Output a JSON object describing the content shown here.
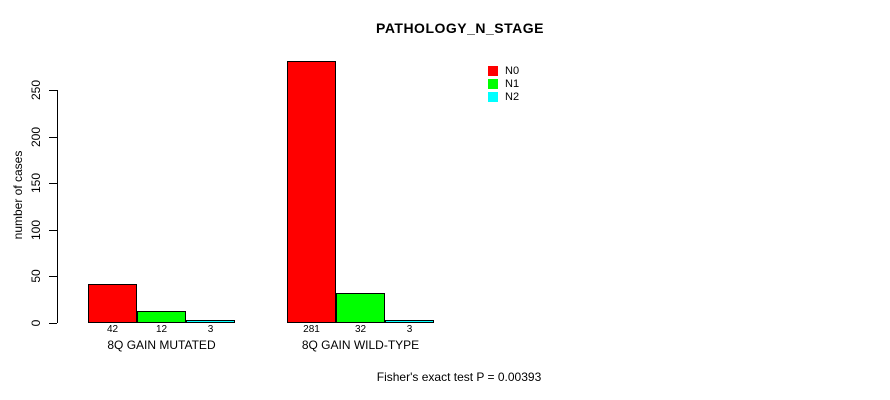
{
  "chart_data": {
    "type": "bar",
    "title": "PATHOLOGY_N_STAGE",
    "xlabel": "",
    "ylabel": "number of cases",
    "ylim": [
      0,
      290
    ],
    "yticks": [
      0,
      50,
      100,
      150,
      200,
      250
    ],
    "grid": false,
    "legend_position": "top-right",
    "categories": [
      "8Q GAIN MUTATED",
      "8Q GAIN WILD-TYPE"
    ],
    "series": [
      {
        "name": "N0",
        "color": "#ff0000",
        "values": [
          42,
          281
        ]
      },
      {
        "name": "N1",
        "color": "#00ff00",
        "values": [
          12,
          32
        ]
      },
      {
        "name": "N2",
        "color": "#00ffff",
        "values": [
          3,
          3
        ]
      }
    ],
    "bar_value_labels": [
      [
        "42",
        "12",
        "3"
      ],
      [
        "281",
        "32",
        "3"
      ]
    ],
    "annotation": "Fisher's exact test P = 0.00393"
  },
  "colors": {
    "axis": "#000000",
    "background": "#ffffff",
    "bar_border": "#000000"
  }
}
